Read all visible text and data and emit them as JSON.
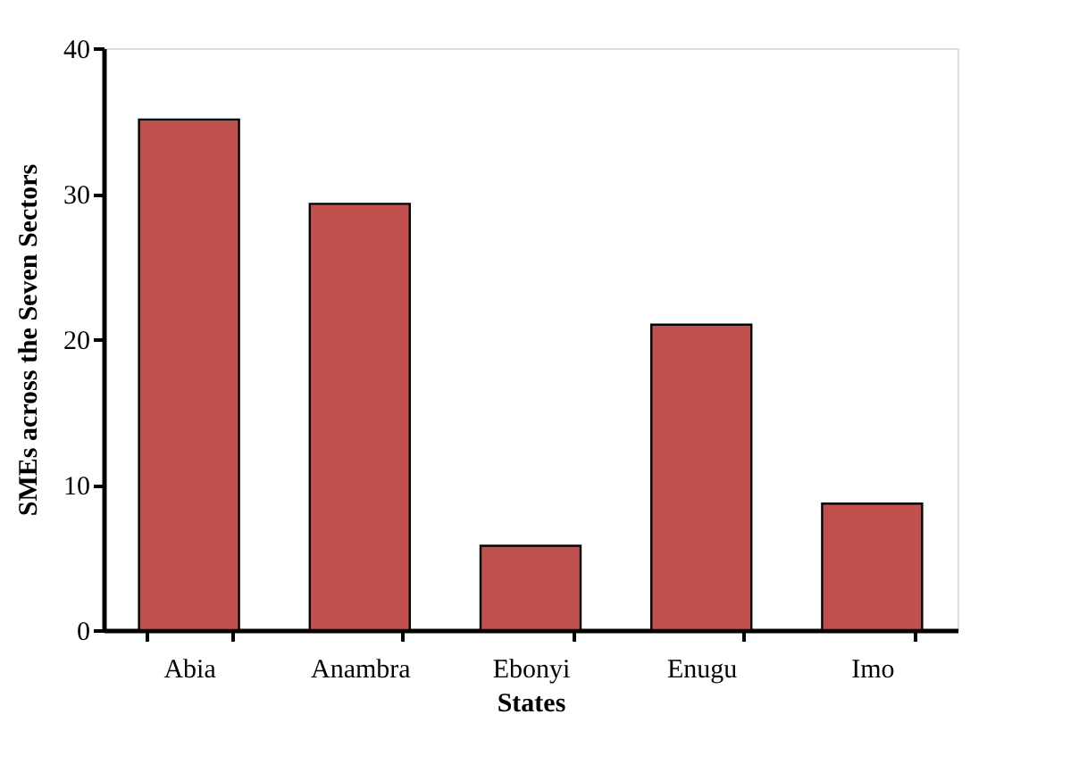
{
  "chart_data": {
    "type": "bar",
    "xlabel": "States",
    "ylabel": "SMEs across the Seven Sectors",
    "categories": [
      "Abia",
      "Anambra",
      "Ebonyi",
      "Enugu",
      "Imo"
    ],
    "values": [
      35.1,
      29.3,
      5.8,
      21.0,
      8.7
    ],
    "color": "#c0504d",
    "ylim": [
      0,
      40
    ],
    "yticks": [
      0,
      10,
      20,
      30,
      40
    ],
    "grid": false
  }
}
